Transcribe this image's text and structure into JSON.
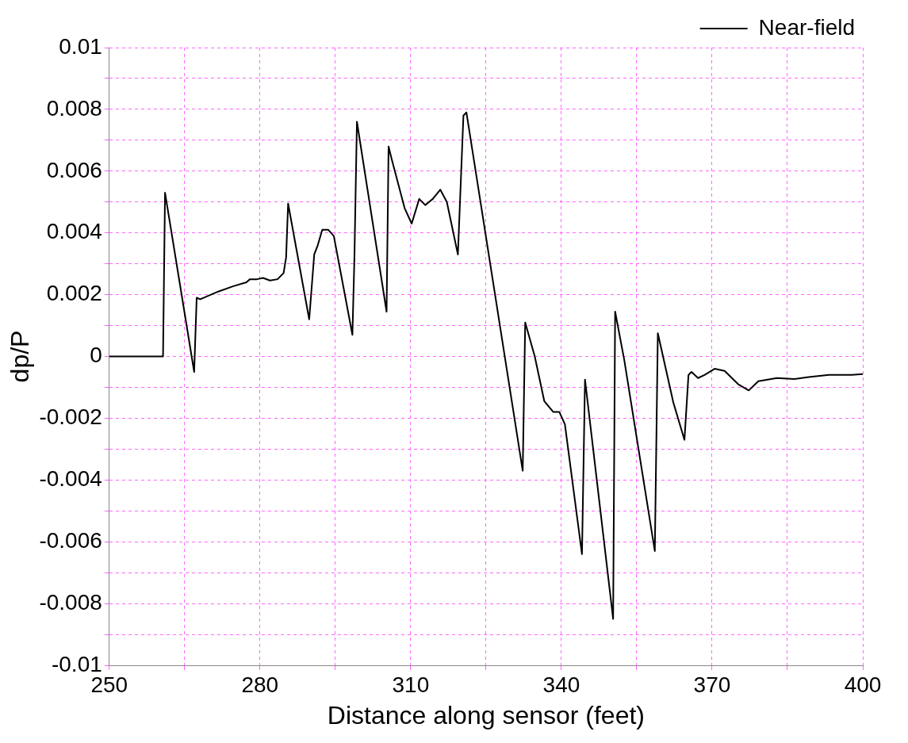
{
  "chart_data": {
    "type": "line",
    "xlabel": "Distance along sensor (feet)",
    "ylabel": "dp/P",
    "xlim": [
      250,
      400
    ],
    "ylim": [
      -0.01,
      0.01
    ],
    "xticks": [
      250,
      {
        "value": 265,
        "label": null
      },
      280,
      {
        "value": 295,
        "label": null
      },
      310,
      {
        "value": 325,
        "label": null
      },
      340,
      {
        "value": 355,
        "label": null
      },
      370,
      {
        "value": 385,
        "label": null
      },
      400
    ],
    "yticks": [
      -0.01,
      {
        "value": -0.009,
        "label": null
      },
      -0.008,
      {
        "value": -0.007,
        "label": null
      },
      -0.006,
      {
        "value": -0.005,
        "label": null
      },
      -0.004,
      {
        "value": -0.003,
        "label": null
      },
      -0.002,
      {
        "value": -0.001,
        "label": null
      },
      0,
      {
        "value": 0.001,
        "label": null
      },
      0.002,
      {
        "value": 0.003,
        "label": null
      },
      0.004,
      {
        "value": 0.005,
        "label": null
      },
      0.006,
      {
        "value": 0.007,
        "label": null
      },
      0.008,
      {
        "value": 0.009,
        "label": null
      },
      0.01
    ],
    "grid": true,
    "legend": "top right",
    "marker": "none",
    "line_style": "solid",
    "series": [
      {
        "name": "Near-field",
        "color": "#000000",
        "x": [
          250,
          260.7,
          261.1,
          266.9,
          267.4,
          268.1,
          271.7,
          274.6,
          277.3,
          278.0,
          279.4,
          280.6,
          282.0,
          283.5,
          284.7,
          285.2,
          285.6,
          289.8,
          290.8,
          291.5,
          292.4,
          293.6,
          294.7,
          298.4,
          298.8,
          299.3,
          305.2,
          305.6,
          306.2,
          308.8,
          310.2,
          311.7,
          312.9,
          314.4,
          315.9,
          317.2,
          319.4,
          320.5,
          321.1,
          332.3,
          332.8,
          334.7,
          336.6,
          338.4,
          339.6,
          340.7,
          344.1,
          344.7,
          350.3,
          350.7,
          352.5,
          358.6,
          359.2,
          362.3,
          364.5,
          365.3,
          365.9,
          367.2,
          368.5,
          370.5,
          372.5,
          375.2,
          377.3,
          379.2,
          382.9,
          386.4,
          389.6,
          393.3,
          397.8,
          400
        ],
        "values": [
          0,
          0,
          0.0053,
          -0.0005,
          0.0019,
          0.00185,
          0.0021,
          0.00227,
          0.0024,
          0.0025,
          0.0025,
          0.00254,
          0.00246,
          0.0025,
          0.0027,
          0.0032,
          0.00495,
          0.0012,
          0.0033,
          0.0036,
          0.0041,
          0.0041,
          0.0039,
          0.0007,
          0.0032,
          0.0076,
          0.00145,
          0.0068,
          0.0064,
          0.0048,
          0.0043,
          0.0051,
          0.0049,
          0.0051,
          0.0054,
          0.005,
          0.0033,
          0.0078,
          0.0079,
          -0.0037,
          0.0011,
          0,
          -0.00145,
          -0.0018,
          -0.0018,
          -0.0022,
          -0.0064,
          -0.00075,
          -0.0085,
          0.00145,
          -0.0001,
          -0.0063,
          0.00075,
          -0.0015,
          -0.0027,
          -0.0006,
          -0.0005,
          -0.0007,
          -0.0006,
          -0.0004,
          -0.00047,
          -0.0009,
          -0.0011,
          -0.0008,
          -0.0007,
          -0.00073,
          -0.00066,
          -0.0006,
          -0.0006,
          -0.00057
        ]
      }
    ]
  }
}
